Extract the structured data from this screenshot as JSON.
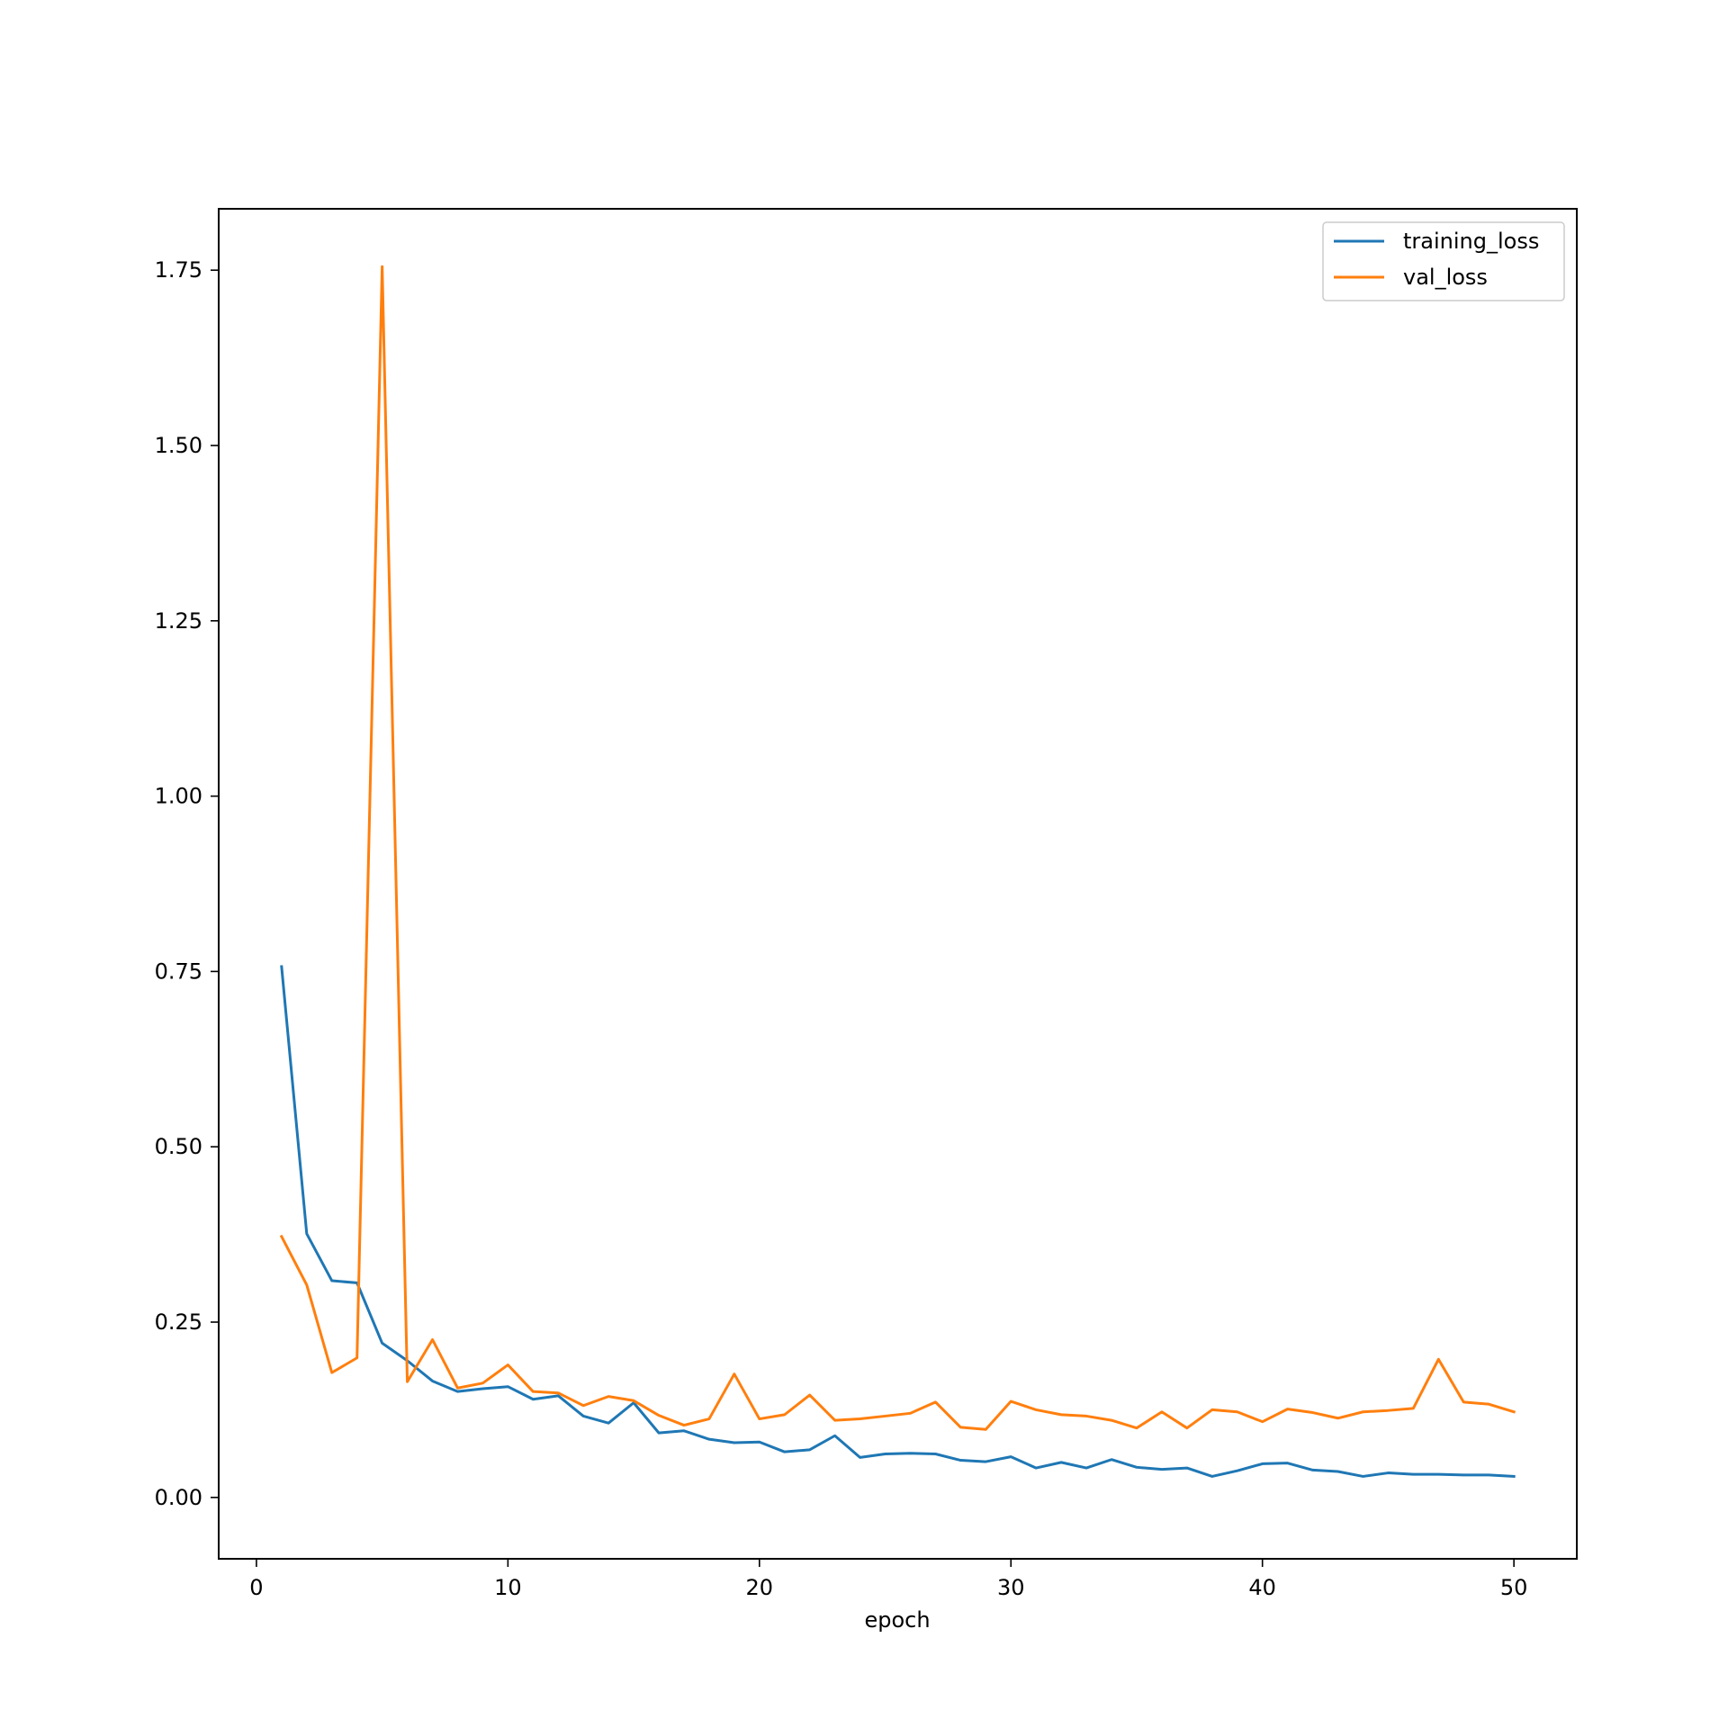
{
  "chart_data": {
    "type": "line",
    "title": "",
    "xlabel": "epoch",
    "ylabel": "",
    "xlim": [
      -1.5,
      52.5
    ],
    "ylim": [
      -0.0875,
      1.8375
    ],
    "xticks": [
      0,
      10,
      20,
      30,
      40,
      50
    ],
    "xtick_labels": [
      "0",
      "10",
      "20",
      "30",
      "40",
      "50"
    ],
    "yticks": [
      0.0,
      0.25,
      0.5,
      0.75,
      1.0,
      1.25,
      1.5,
      1.75
    ],
    "ytick_labels": [
      "0.00",
      "0.25",
      "0.50",
      "0.75",
      "1.00",
      "1.25",
      "1.50",
      "1.75"
    ],
    "grid": false,
    "legend_position": "top-right",
    "x": [
      1,
      2,
      3,
      4,
      5,
      6,
      7,
      8,
      9,
      10,
      11,
      12,
      13,
      14,
      15,
      16,
      17,
      18,
      19,
      20,
      21,
      22,
      23,
      24,
      25,
      26,
      27,
      28,
      29,
      30,
      31,
      32,
      33,
      34,
      35,
      36,
      37,
      38,
      39,
      40,
      41,
      42,
      43,
      44,
      45,
      46,
      47,
      48,
      49,
      50
    ],
    "series": [
      {
        "name": "training_loss",
        "color": "#1f77b4",
        "values": [
          0.757,
          0.376,
          0.309,
          0.306,
          0.22,
          0.195,
          0.166,
          0.151,
          0.155,
          0.158,
          0.14,
          0.145,
          0.116,
          0.106,
          0.135,
          0.092,
          0.095,
          0.083,
          0.078,
          0.079,
          0.065,
          0.068,
          0.088,
          0.057,
          0.062,
          0.063,
          0.062,
          0.053,
          0.051,
          0.058,
          0.042,
          0.05,
          0.042,
          0.054,
          0.043,
          0.04,
          0.042,
          0.03,
          0.038,
          0.048,
          0.049,
          0.039,
          0.037,
          0.03,
          0.035,
          0.033,
          0.033,
          0.032,
          0.032,
          0.03
        ]
      },
      {
        "name": "val_loss",
        "color": "#ff7f0e",
        "values": [
          0.372,
          0.303,
          0.178,
          0.199,
          1.755,
          0.165,
          0.225,
          0.156,
          0.163,
          0.189,
          0.151,
          0.149,
          0.131,
          0.144,
          0.138,
          0.117,
          0.103,
          0.112,
          0.176,
          0.112,
          0.118,
          0.146,
          0.11,
          0.112,
          0.116,
          0.12,
          0.136,
          0.1,
          0.097,
          0.137,
          0.125,
          0.118,
          0.116,
          0.11,
          0.099,
          0.122,
          0.099,
          0.125,
          0.122,
          0.108,
          0.126,
          0.121,
          0.113,
          0.122,
          0.124,
          0.127,
          0.197,
          0.136,
          0.133,
          0.122
        ]
      }
    ]
  }
}
